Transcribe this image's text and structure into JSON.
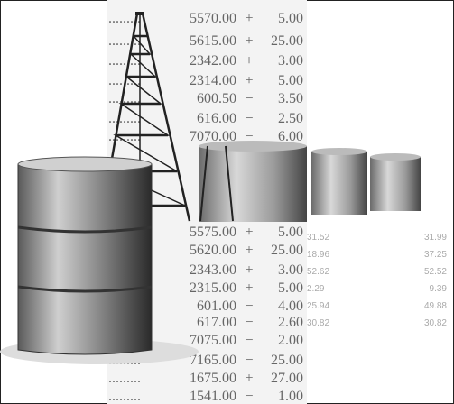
{
  "ticker_rows": [
    {
      "price": "5570.00",
      "sign": "+",
      "change": "5.00"
    },
    {
      "price": "5615.00",
      "sign": "+",
      "change": "25.00"
    },
    {
      "price": "2342.00",
      "sign": "+",
      "change": "3.00"
    },
    {
      "price": "2314.00",
      "sign": "+",
      "change": "5.00"
    },
    {
      "price": "600.50",
      "sign": "−",
      "change": "3.50"
    },
    {
      "price": "616.00",
      "sign": "−",
      "change": "2.50"
    },
    {
      "price": "7070.00",
      "sign": "−",
      "change": "6.00"
    },
    {
      "price": "5575.00",
      "sign": "+",
      "change": "5.00"
    },
    {
      "price": "5620.00",
      "sign": "+",
      "change": "25.00"
    },
    {
      "price": "2343.00",
      "sign": "+",
      "change": "3.00"
    },
    {
      "price": "2315.00",
      "sign": "+",
      "change": "5.00"
    },
    {
      "price": "601.00",
      "sign": "−",
      "change": "4.00"
    },
    {
      "price": "617.00",
      "sign": "−",
      "change": "2.60"
    },
    {
      "price": "7075.00",
      "sign": "−",
      "change": "2.00"
    },
    {
      "price": "7165.00",
      "sign": "−",
      "change": "25.00"
    },
    {
      "price": "1675.00",
      "sign": "+",
      "change": "27.00"
    },
    {
      "price": "1541.00",
      "sign": "−",
      "change": "1.00"
    }
  ],
  "side_rows": [
    [
      "31.52",
      "31.99"
    ],
    [
      "18.96",
      "37.25"
    ],
    [
      "52.62",
      "52.52"
    ],
    [
      "2.29",
      "9.39"
    ],
    [
      "25.94",
      "49.88"
    ],
    [
      "30.82",
      "30.82"
    ]
  ]
}
